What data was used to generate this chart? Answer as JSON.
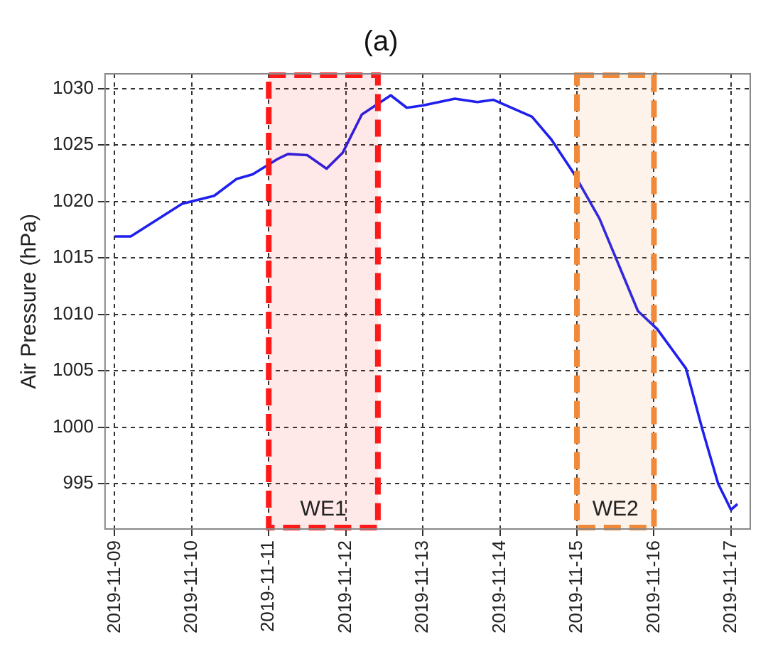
{
  "chart_data": {
    "type": "line",
    "title": "(a)",
    "ylabel": "Air Pressure (hPa)",
    "x": [
      "2019-11-09T00:00",
      "2019-11-09T05:00",
      "2019-11-09T21:00",
      "2019-11-10T07:00",
      "2019-11-10T14:00",
      "2019-11-10T19:00",
      "2019-11-11T03:00",
      "2019-11-11T06:00",
      "2019-11-11T12:00",
      "2019-11-11T18:00",
      "2019-11-11T23:00",
      "2019-11-12T05:00",
      "2019-11-12T14:00",
      "2019-11-12T19:00",
      "2019-11-13T00:00",
      "2019-11-13T10:00",
      "2019-11-13T17:00",
      "2019-11-13T22:00",
      "2019-11-14T10:00",
      "2019-11-14T16:00",
      "2019-11-14T23:00",
      "2019-11-15T07:00",
      "2019-11-15T13:00",
      "2019-11-15T19:00",
      "2019-11-16T01:00",
      "2019-11-16T10:00",
      "2019-11-16T15:00",
      "2019-11-16T20:00",
      "2019-11-17T00:00",
      "2019-11-17T02:00"
    ],
    "series": [
      {
        "color": "#1f1fee",
        "values": [
          1016.9,
          1016.9,
          1019.8,
          1020.5,
          1022.0,
          1022.4,
          1023.8,
          1024.2,
          1024.1,
          1022.9,
          1024.3,
          1027.7,
          1029.4,
          1028.3,
          1028.5,
          1029.1,
          1028.8,
          1029.0,
          1027.5,
          1025.5,
          1022.5,
          1018.5,
          1014.4,
          1010.3,
          1008.7,
          1005.2,
          999.9,
          995.0,
          992.7,
          993.2
        ]
      }
    ],
    "xlim": [
      "2019-11-08T21:00",
      "2019-11-17T06:00"
    ],
    "xticks": [
      "2019-11-09",
      "2019-11-10",
      "2019-11-11",
      "2019-11-12",
      "2019-11-13",
      "2019-11-14",
      "2019-11-15",
      "2019-11-16",
      "2019-11-17"
    ],
    "ylim": [
      991,
      1031.3
    ],
    "yticks": [
      995,
      1000,
      1005,
      1010,
      1015,
      1020,
      1025,
      1030
    ],
    "grid": true,
    "legend": false,
    "marker": "none",
    "line_style": "solid",
    "bands": [
      {
        "axis": "x",
        "from": "2019-11-11T00:00",
        "to": "2019-11-12T10:00",
        "label": "WE1",
        "color": "#ff1a1a"
      },
      {
        "axis": "x",
        "from": "2019-11-15T00:00",
        "to": "2019-11-16T00:00",
        "label": "WE2",
        "color": "#f08a3a"
      }
    ]
  }
}
